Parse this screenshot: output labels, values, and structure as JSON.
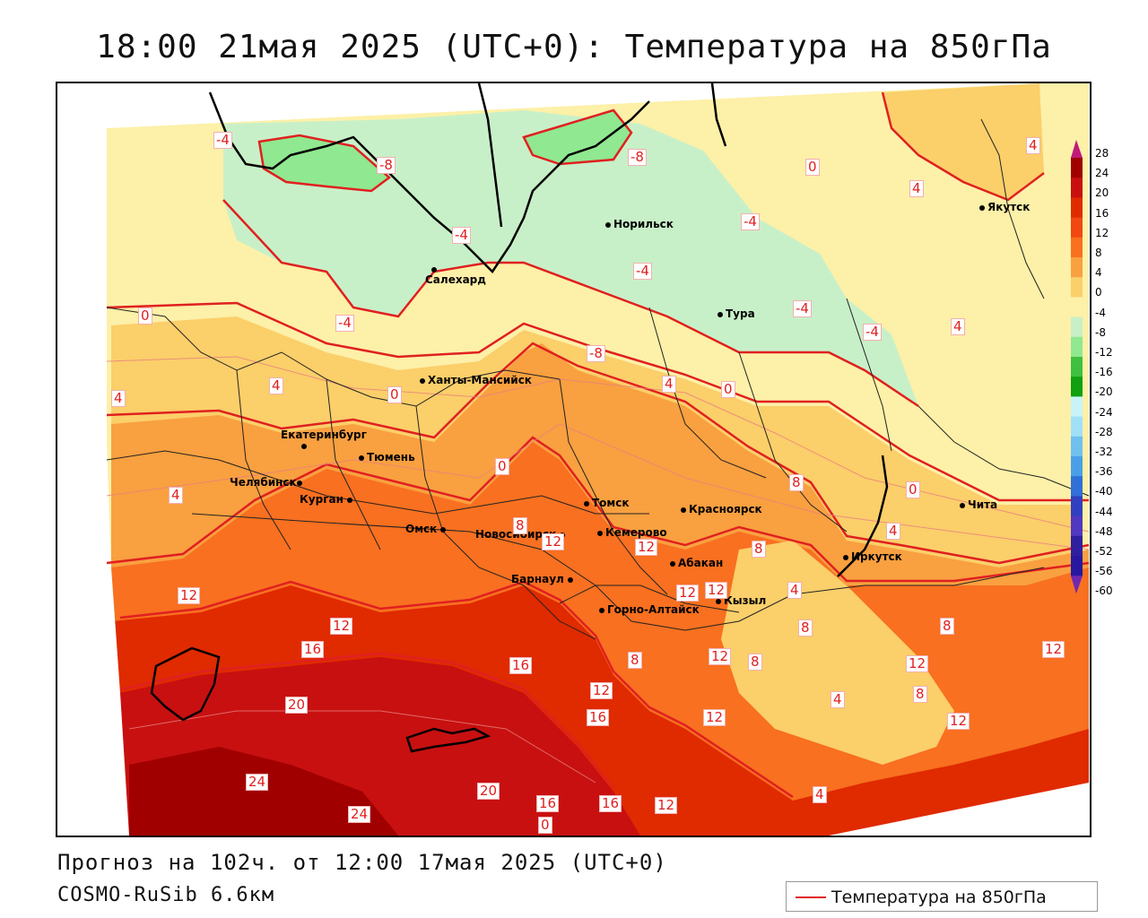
{
  "title": "18:00 21мая 2025 (UTC+0): Температура на 850гПа",
  "footer": {
    "forecast": "Прогноз на 102ч. от 12:00 17мая 2025 (UTC+0)",
    "model": "COSMO-RuSib 6.6км"
  },
  "legend": {
    "label": "Температура на 850гПа",
    "line_color": "#e02020"
  },
  "colorbar": {
    "ticks": [
      "28",
      "24",
      "20",
      "16",
      "12",
      "8",
      "4",
      "0",
      "-4",
      "-8",
      "-12",
      "-16",
      "-20",
      "-24",
      "-28",
      "-32",
      "-36",
      "-40",
      "-44",
      "-48",
      "-52",
      "-56",
      "-60"
    ],
    "colors": [
      "#c21a7a",
      "#a00000",
      "#c81010",
      "#e02a00",
      "#f04810",
      "#f87020",
      "#f9a040",
      "#fbcf6a",
      "#fdf0a8",
      "#c8f0c8",
      "#90e890",
      "#40c040",
      "#10a010",
      "#c8f4f8",
      "#a0e0f8",
      "#70c0f0",
      "#4aa0e8",
      "#3070d8",
      "#3040c0",
      "#5038c0",
      "#3020a0",
      "#2818a0",
      "#7028b0"
    ]
  },
  "cities": [
    {
      "name": "Якутск"
    },
    {
      "name": "Норильск"
    },
    {
      "name": "Салехард"
    },
    {
      "name": "Тура"
    },
    {
      "name": "Ханты-Мансийск"
    },
    {
      "name": "Екатеринбург"
    },
    {
      "name": "Тюмень"
    },
    {
      "name": "Челябинск"
    },
    {
      "name": "Курган"
    },
    {
      "name": "Омск"
    },
    {
      "name": "Новосибирск"
    },
    {
      "name": "Томск"
    },
    {
      "name": "Кемерово"
    },
    {
      "name": "Красноярск"
    },
    {
      "name": "Абакан"
    },
    {
      "name": "Барнаул"
    },
    {
      "name": "Горно-Алтайск"
    },
    {
      "name": "Кызыл"
    },
    {
      "name": "Иркутск"
    },
    {
      "name": "Чита"
    }
  ],
  "contour_labels": [
    "-4",
    "-8",
    "-8",
    "-8",
    "-4",
    "0",
    "4",
    "-4",
    "0",
    "0",
    "4",
    "-4",
    "-4",
    "-4",
    "4",
    "0",
    "4",
    "4",
    "0",
    "-4",
    "0",
    "4",
    "4",
    "0",
    "8",
    "4",
    "0",
    "4",
    "8",
    "12",
    "12",
    "12",
    "16",
    "16",
    "20",
    "24",
    "24",
    "20",
    "16",
    "16",
    "16",
    "12",
    "12",
    "12",
    "12",
    "8",
    "8",
    "12",
    "12",
    "4",
    "8",
    "8",
    "12",
    "12",
    "12",
    "8",
    "8",
    "4",
    "12"
  ]
}
